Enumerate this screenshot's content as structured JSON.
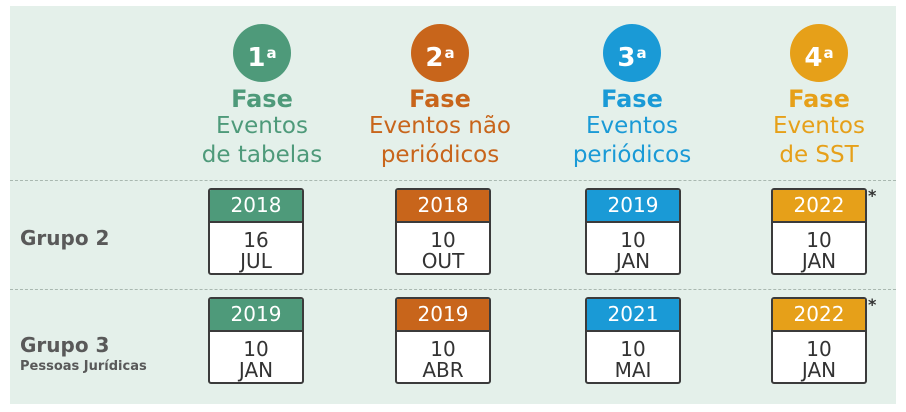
{
  "colors": {
    "phase1": "#4e9a7a",
    "phase2": "#c8651b",
    "phase3": "#1a9ad6",
    "phase4": "#e6a019"
  },
  "phases": [
    {
      "number": "1",
      "ordinal": "a",
      "title": "Fase",
      "line1": "Eventos",
      "line2": "de tabelas"
    },
    {
      "number": "2",
      "ordinal": "a",
      "title": "Fase",
      "line1": "Eventos não",
      "line2": "periódicos"
    },
    {
      "number": "3",
      "ordinal": "a",
      "title": "Fase",
      "line1": "Eventos",
      "line2": "periódicos"
    },
    {
      "number": "4",
      "ordinal": "a",
      "title": "Fase",
      "line1": "Eventos",
      "line2": "de SST"
    }
  ],
  "groups": [
    {
      "title": "Grupo 2",
      "subtitle": "",
      "dates": [
        {
          "year": "2018",
          "day": "16",
          "month": "JUL"
        },
        {
          "year": "2018",
          "day": "10",
          "month": "OUT"
        },
        {
          "year": "2019",
          "day": "10",
          "month": "JAN"
        },
        {
          "year": "2022",
          "day": "10",
          "month": "JAN"
        }
      ],
      "note": "*"
    },
    {
      "title": "Grupo 3",
      "subtitle": "Pessoas Jurídicas",
      "dates": [
        {
          "year": "2019",
          "day": "10",
          "month": "JAN"
        },
        {
          "year": "2019",
          "day": "10",
          "month": "ABR"
        },
        {
          "year": "2021",
          "day": "10",
          "month": "MAI"
        },
        {
          "year": "2022",
          "day": "10",
          "month": "JAN"
        }
      ],
      "note": "*"
    }
  ]
}
